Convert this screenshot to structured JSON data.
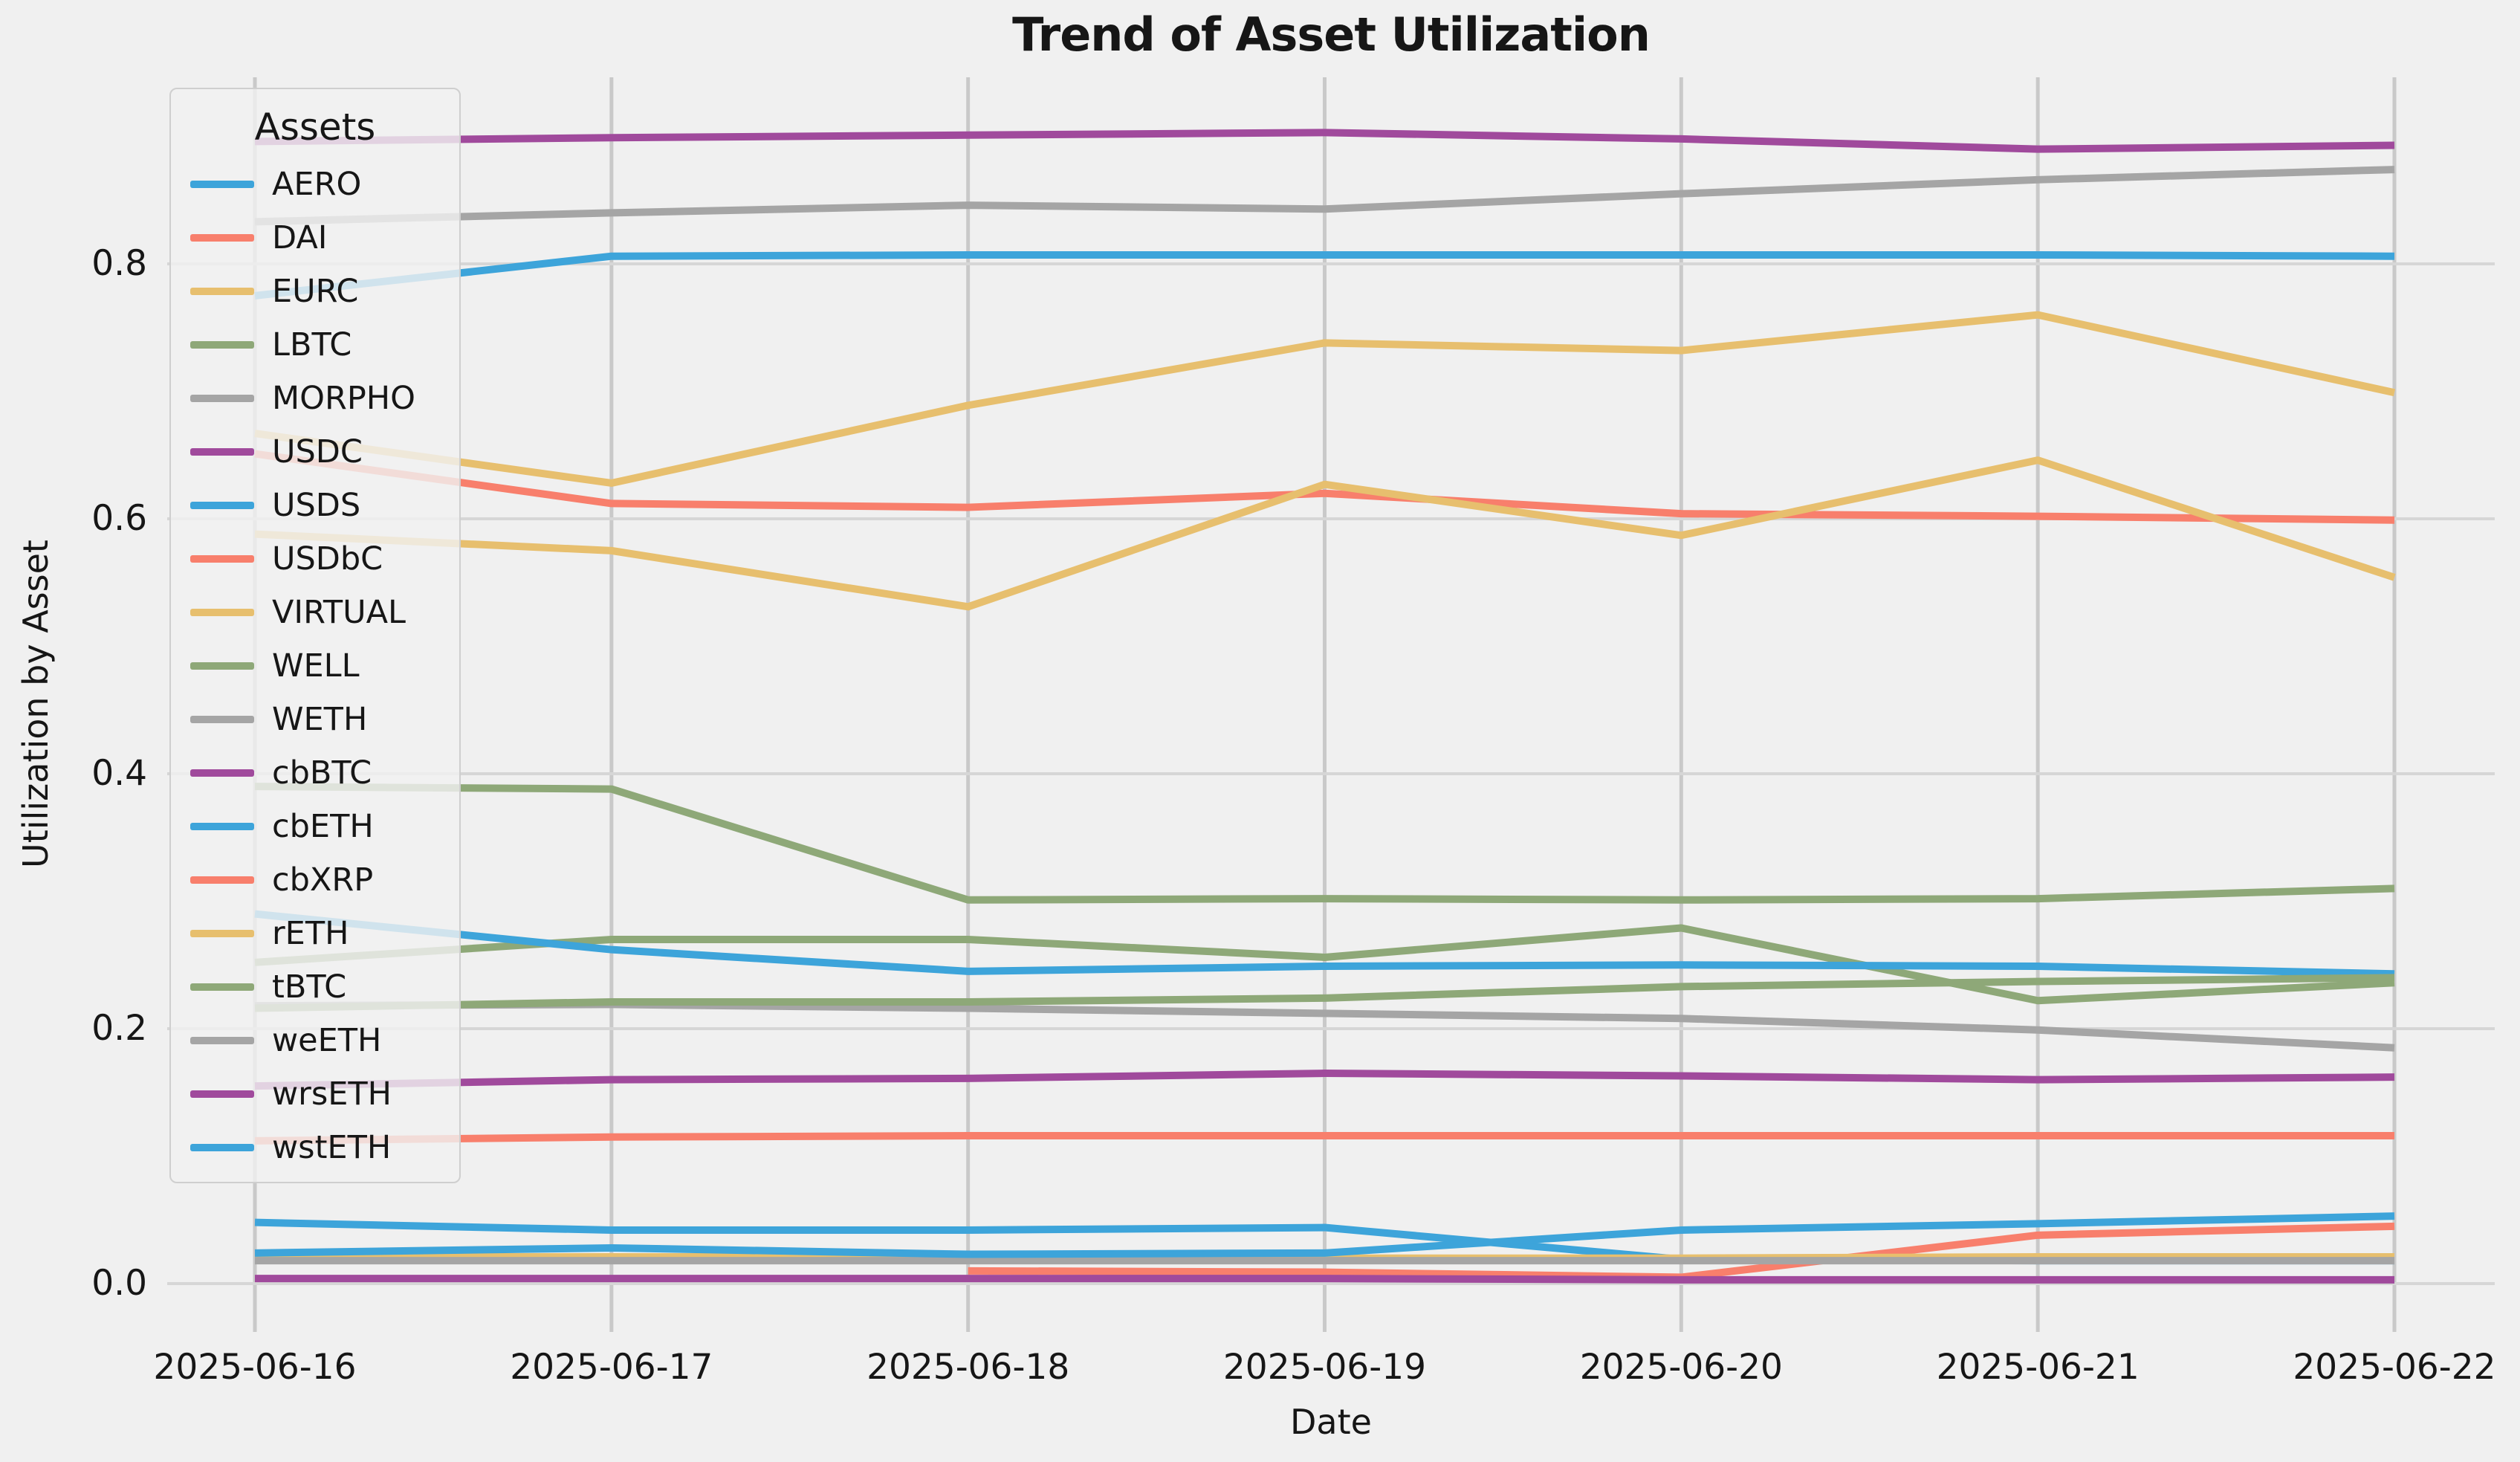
{
  "legend_title": "Assets",
  "style": {
    "background": "#f0f0f0",
    "vgrid_color": "#c9c9c9",
    "hgrid_color": "#d6d6d6",
    "text_color": "#161616"
  },
  "chart_data": {
    "type": "line",
    "title": "Trend of Asset Utilization",
    "xlabel": "Date",
    "ylabel": "Utilization by Asset",
    "x": [
      "2025-06-16",
      "2025-06-17",
      "2025-06-18",
      "2025-06-19",
      "2025-06-20",
      "2025-06-21",
      "2025-06-22"
    ],
    "y_ticks": [
      "0.0",
      "0.2",
      "0.4",
      "0.6",
      "0.8"
    ],
    "ylim": [
      -0.037,
      0.946
    ],
    "grid": true,
    "legend_position": "upper left",
    "series": [
      {
        "name": "AERO",
        "color": "#3da4da",
        "values": [
          0.775,
          0.806,
          0.807,
          0.807,
          0.807,
          0.807,
          0.806
        ]
      },
      {
        "name": "DAI",
        "color": "#f87f6c",
        "values": [
          0.651,
          0.612,
          0.609,
          0.62,
          0.604,
          0.602,
          0.599
        ]
      },
      {
        "name": "EURC",
        "color": "#e7bf6e",
        "values": [
          0.667,
          0.628,
          0.689,
          0.738,
          0.732,
          0.76,
          0.699
        ]
      },
      {
        "name": "LBTC",
        "color": "#8ea878",
        "values": [
          0.39,
          0.388,
          0.301,
          0.302,
          0.301,
          0.302,
          0.31
        ]
      },
      {
        "name": "MORPHO",
        "color": "#a5a5a5",
        "values": [
          0.833,
          0.84,
          0.846,
          0.843,
          0.855,
          0.866,
          0.874
        ]
      },
      {
        "name": "USDC",
        "color": "#a04a9c",
        "values": [
          0.896,
          0.899,
          0.901,
          0.903,
          0.898,
          0.89,
          0.893
        ]
      },
      {
        "name": "USDS",
        "color": "#3da4da",
        "values": [
          0.048,
          0.042,
          0.042,
          0.044,
          0.019,
          0.018,
          0.018
        ]
      },
      {
        "name": "USDbC",
        "color": "#f87f6c",
        "values": [
          0.112,
          0.115,
          0.116,
          0.116,
          0.116,
          0.116,
          0.116
        ]
      },
      {
        "name": "VIRTUAL",
        "color": "#e7bf6e",
        "values": [
          0.588,
          0.575,
          0.531,
          0.627,
          0.587,
          0.646,
          0.554
        ]
      },
      {
        "name": "WELL",
        "color": "#8ea878",
        "values": [
          0.252,
          0.27,
          0.27,
          0.256,
          0.279,
          0.222,
          0.236
        ]
      },
      {
        "name": "WETH",
        "color": "#a5a5a5",
        "values": [
          0.218,
          0.219,
          0.216,
          0.212,
          0.208,
          0.199,
          0.185
        ]
      },
      {
        "name": "cbBTC",
        "color": "#a04a9c",
        "values": [
          0.155,
          0.16,
          0.161,
          0.165,
          0.163,
          0.16,
          0.162
        ]
      },
      {
        "name": "cbETH",
        "color": "#3da4da",
        "values": [
          0.29,
          0.262,
          0.245,
          0.249,
          0.25,
          0.249,
          0.243
        ]
      },
      {
        "name": "cbXRP",
        "color": "#f87f6c",
        "values": [
          null,
          null,
          0.01,
          0.009,
          0.005,
          0.038,
          0.045
        ]
      },
      {
        "name": "rETH",
        "color": "#e7bf6e",
        "values": [
          0.021,
          0.021,
          0.021,
          0.02,
          0.02,
          0.021,
          0.021
        ]
      },
      {
        "name": "tBTC",
        "color": "#8ea878",
        "values": [
          0.216,
          0.221,
          0.221,
          0.224,
          0.233,
          0.237,
          0.24
        ]
      },
      {
        "name": "weETH",
        "color": "#a5a5a5",
        "values": [
          0.018,
          0.018,
          0.018,
          0.018,
          0.018,
          0.018,
          0.018
        ]
      },
      {
        "name": "wrsETH",
        "color": "#a04a9c",
        "values": [
          0.004,
          0.004,
          0.004,
          0.004,
          0.003,
          0.003,
          0.003
        ]
      },
      {
        "name": "wstETH",
        "color": "#3da4da",
        "values": [
          0.024,
          0.028,
          0.023,
          0.024,
          0.042,
          0.047,
          0.053
        ]
      }
    ]
  }
}
